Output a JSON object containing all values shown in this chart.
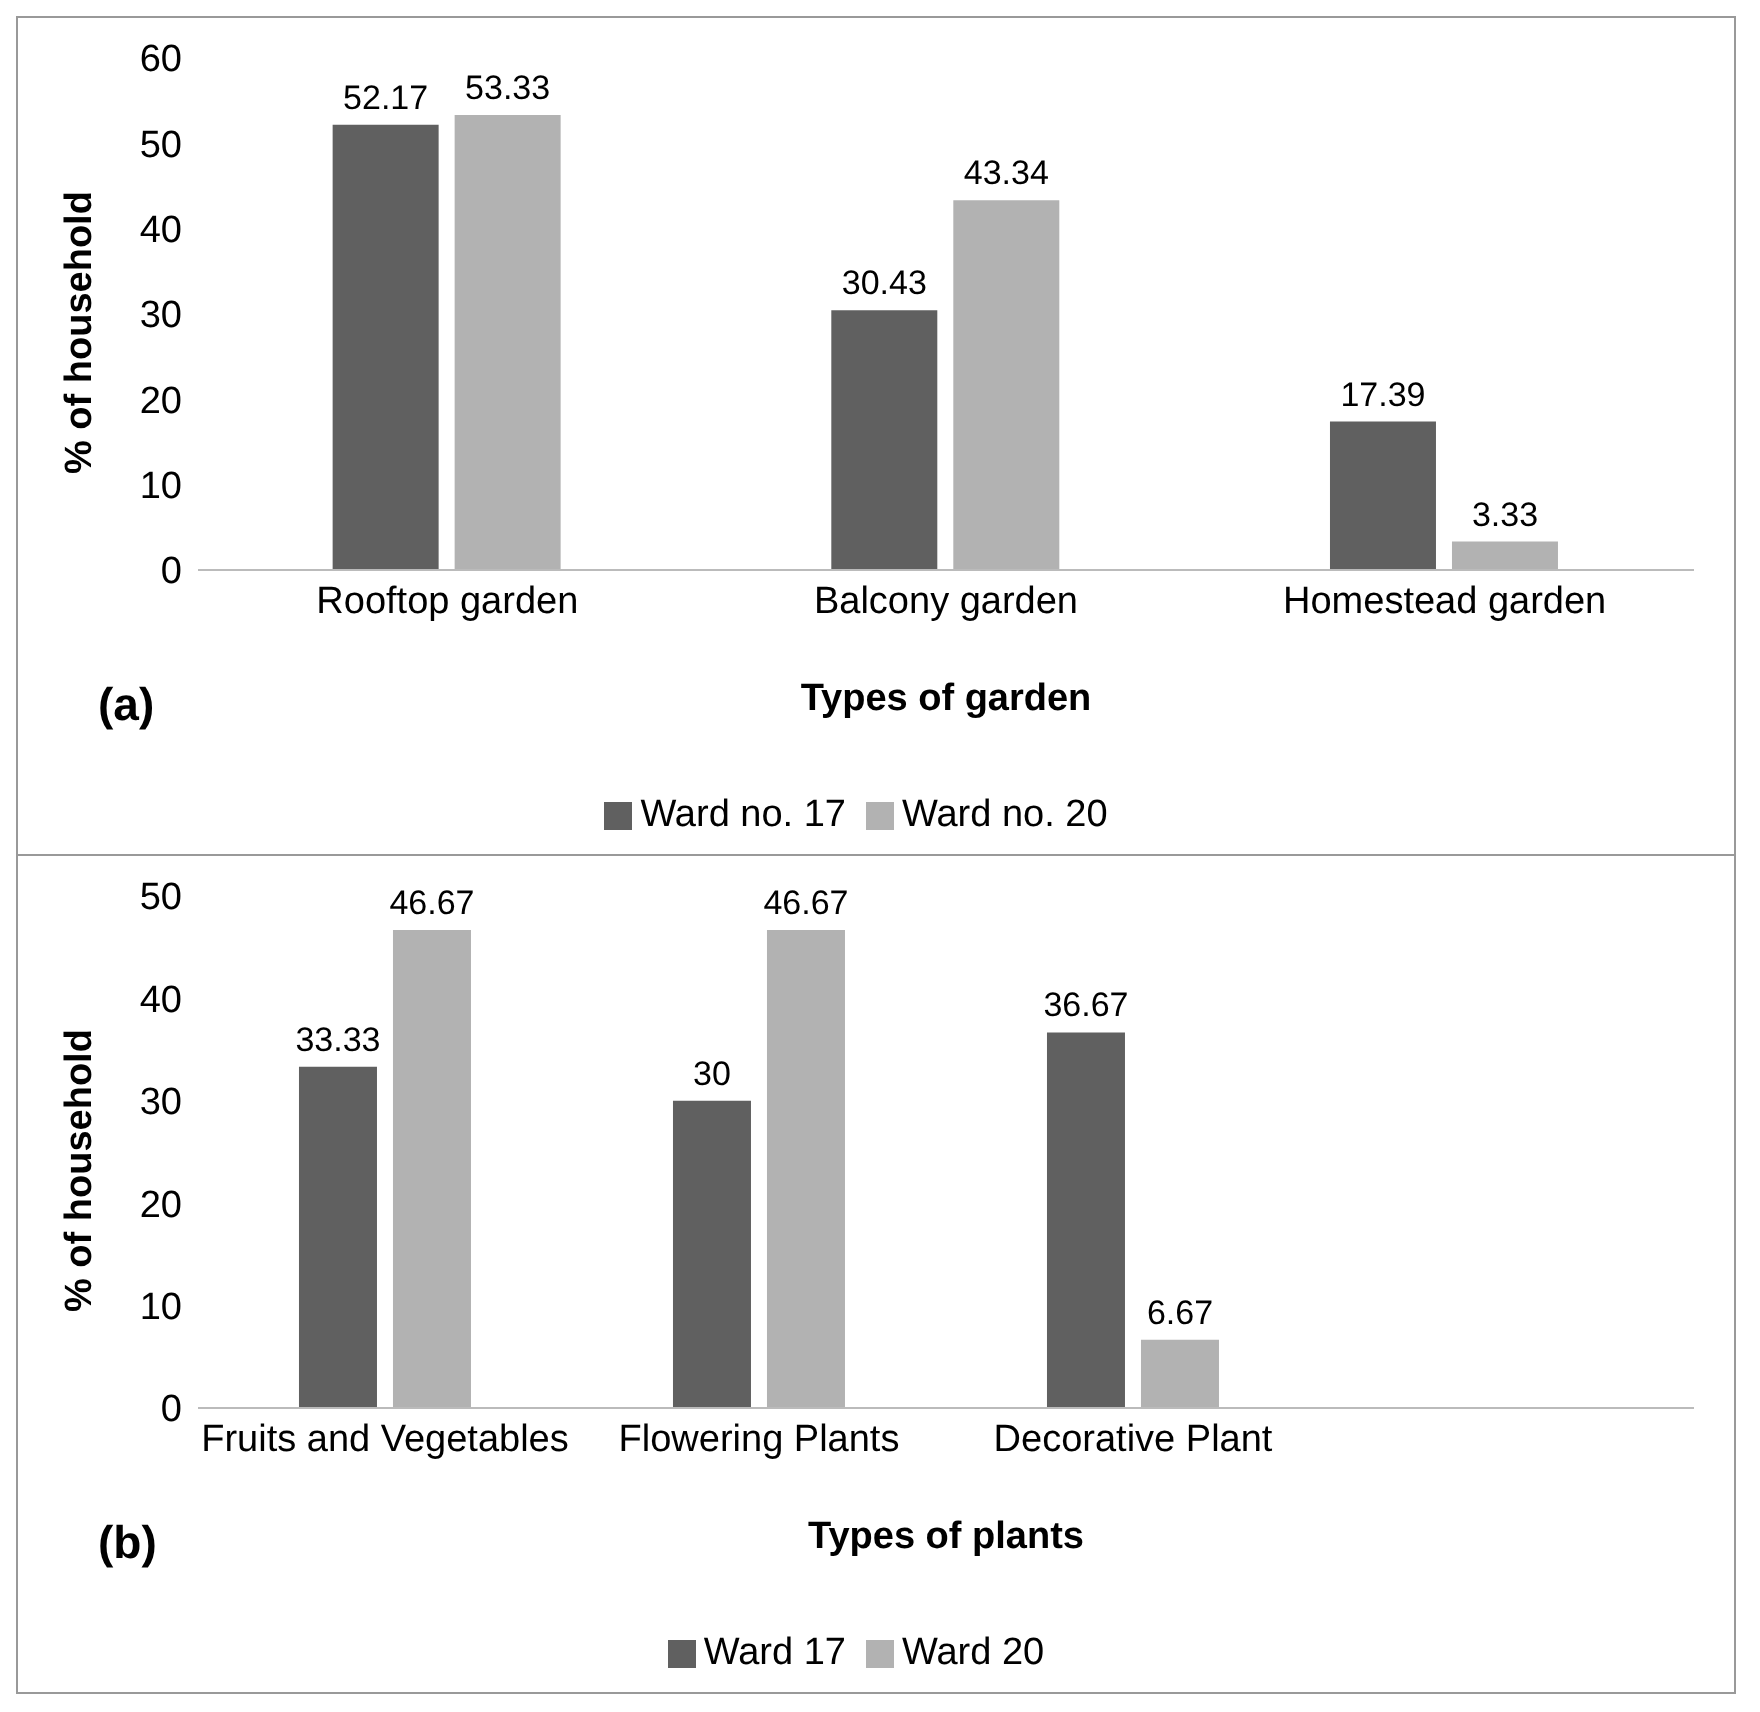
{
  "chart_data": [
    {
      "type": "bar",
      "categories": [
        "Rooftop garden",
        "Balcony garden",
        "Homestead garden"
      ],
      "xlabel": "Types of garden",
      "ylabel": "% of household",
      "annotations": [
        "(a)"
      ],
      "series": [
        {
          "name": "Ward no. 17",
          "color": "#606060",
          "values": [
            52.17,
            30.43,
            17.39
          ]
        },
        {
          "name": "Ward no. 20",
          "color": "#b2b2b2",
          "values": [
            53.33,
            43.34,
            3.33
          ]
        }
      ],
      "ylim": [
        0,
        60
      ],
      "yticks": [
        0,
        10,
        20,
        30,
        40,
        50,
        60
      ],
      "grid": false,
      "legend": "bottom",
      "data_labels": true
    },
    {
      "type": "bar",
      "categories": [
        "Fruits and Vegetables",
        "Flowering Plants",
        "Decorative Plant",
        null
      ],
      "xlabel": "Types of plants",
      "ylabel": "% of household",
      "annotations": [
        "(b)"
      ],
      "series": [
        {
          "name": "Ward 17",
          "color": "#606060",
          "values": [
            33.33,
            30,
            36.67,
            null
          ]
        },
        {
          "name": "Ward 20",
          "color": "#b2b2b2",
          "values": [
            46.67,
            46.67,
            6.67,
            null
          ]
        }
      ],
      "ylim": [
        0,
        50
      ],
      "yticks": [
        0,
        10,
        20,
        30,
        40,
        50
      ],
      "grid": false,
      "legend": "bottom",
      "data_labels": true
    }
  ]
}
